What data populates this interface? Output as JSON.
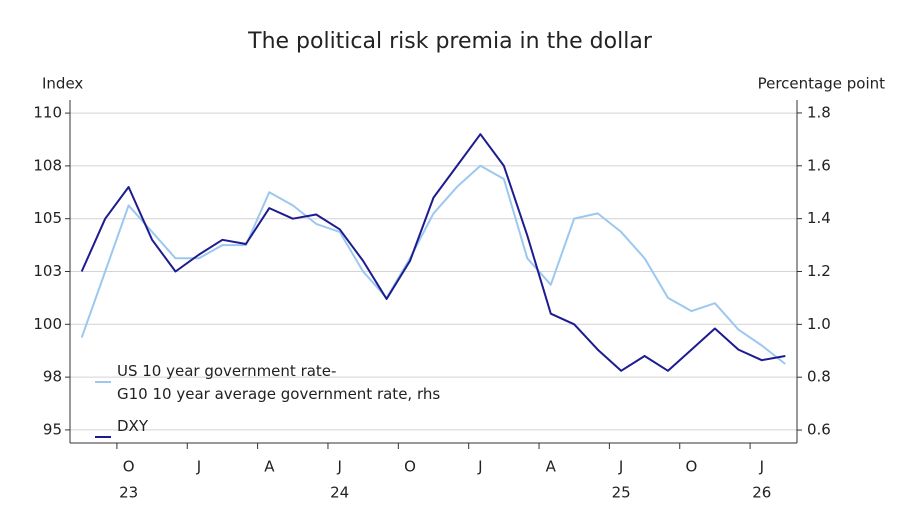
{
  "chart_data": {
    "type": "line",
    "title": "The political risk premia in the dollar",
    "ylabel": "Index",
    "y2label": "Percentage point",
    "x": [
      "2023-08",
      "2023-09",
      "2023-10",
      "2023-11",
      "2023-12",
      "2024-01",
      "2024-02",
      "2024-03",
      "2024-04",
      "2024-05",
      "2024-06",
      "2024-07",
      "2024-08",
      "2024-09",
      "2024-10",
      "2024-11",
      "2024-12",
      "2025-01",
      "2025-02",
      "2025-03",
      "2025-04",
      "2025-05",
      "2025-06",
      "2025-07",
      "2025-08",
      "2025-09",
      "2025-10",
      "2025-11",
      "2025-12",
      "2026-01",
      "2026-02"
    ],
    "xlim": [
      "2023-08",
      "2026-02"
    ],
    "xticks": [
      {
        "value": "2023-10",
        "label": "O"
      },
      {
        "value": "2024-01",
        "label": "J"
      },
      {
        "value": "2024-04",
        "label": "A"
      },
      {
        "value": "2024-07",
        "label": "J"
      },
      {
        "value": "2024-10",
        "label": "O"
      },
      {
        "value": "2025-01",
        "label": "J"
      },
      {
        "value": "2025-04",
        "label": "A"
      },
      {
        "value": "2025-07",
        "label": "J"
      },
      {
        "value": "2025-10",
        "label": "O"
      },
      {
        "value": "2026-01",
        "label": "J"
      }
    ],
    "xyears": [
      {
        "value": "2023-10",
        "label": "23"
      },
      {
        "value": "2024-07",
        "label": "24"
      },
      {
        "value": "2025-07",
        "label": "25"
      },
      {
        "value": "2026-01",
        "label": "26"
      }
    ],
    "ylim": [
      94.38,
      110.62
    ],
    "yticks": [
      110,
      {
        "value": 107.5,
        "label": "108"
      },
      105,
      {
        "value": 102.5,
        "label": "103"
      },
      100,
      {
        "value": 97.5,
        "label": "98"
      },
      95
    ],
    "y2lim": [
      0.551,
      1.849
    ],
    "y2ticks": [
      1.8,
      1.6,
      1.4,
      1.2,
      {
        "value": 1,
        "label": "1.0"
      },
      0.8,
      0.6
    ],
    "grid": true,
    "series": [
      {
        "name": "US 10 year government rate-\nG10 10 year average government rate, rhs",
        "color": "#9cc8ef",
        "axis": "y2",
        "values": [
          0.95,
          1.2,
          1.45,
          1.35,
          1.25,
          1.25,
          1.3,
          1.3,
          1.5,
          1.45,
          1.38,
          1.35,
          1.2,
          1.1,
          1.25,
          1.42,
          1.52,
          1.6,
          1.55,
          1.25,
          1.15,
          1.4,
          1.42,
          1.35,
          1.25,
          1.1,
          1.05,
          1.08,
          0.98,
          0.92,
          0.85
        ]
      },
      {
        "name": "DXY",
        "color": "#1c1c8f",
        "values": [
          102.5,
          105,
          106.5,
          104,
          102.5,
          103.3,
          104,
          103.8,
          105.5,
          105,
          105.2,
          104.5,
          103,
          101.2,
          103,
          106,
          107.5,
          109,
          107.5,
          104.2,
          100.5,
          100,
          98.8,
          97.8,
          98.5,
          97.8,
          98.8,
          99.8,
          98.8,
          98.3,
          98.5
        ]
      }
    ]
  }
}
